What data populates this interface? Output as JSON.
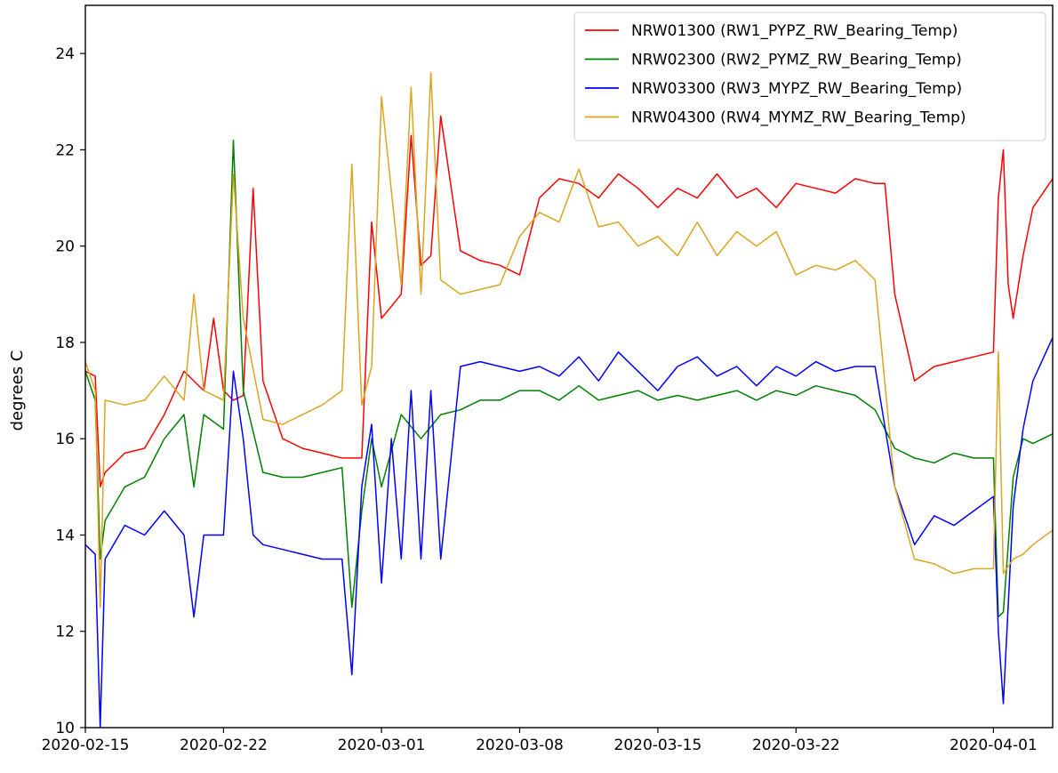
{
  "chart_data": {
    "type": "line",
    "title": "",
    "xlabel": "",
    "ylabel": "degrees C",
    "xlim": [
      "2020-02-15",
      "2020-04-04"
    ],
    "ylim": [
      10,
      25
    ],
    "grid": false,
    "legend_position": "top-right",
    "x_ticks": [
      "2020-02-15",
      "2020-02-22",
      "2020-03-01",
      "2020-03-08",
      "2020-03-15",
      "2020-03-22",
      "2020-04-01"
    ],
    "y_ticks": [
      10,
      12,
      14,
      16,
      18,
      20,
      22,
      24
    ],
    "series": [
      {
        "name": "NRW01300 (RW1_PYPZ_RW_Bearing_Temp)",
        "color": "#ff0000",
        "points": [
          [
            "2020-02-15",
            17.4
          ],
          [
            "2020-02-15T12:00",
            17.3
          ],
          [
            "2020-02-15T18:00",
            15.0
          ],
          [
            "2020-02-16",
            15.3
          ],
          [
            "2020-02-17",
            15.7
          ],
          [
            "2020-02-18",
            15.8
          ],
          [
            "2020-02-19",
            16.5
          ],
          [
            "2020-02-20",
            17.4
          ],
          [
            "2020-02-21",
            17.0
          ],
          [
            "2020-02-21T12:00",
            18.5
          ],
          [
            "2020-02-22",
            17.0
          ],
          [
            "2020-02-22T12:00",
            16.8
          ],
          [
            "2020-02-23",
            16.9
          ],
          [
            "2020-02-23T12:00",
            21.2
          ],
          [
            "2020-02-24",
            17.2
          ],
          [
            "2020-02-25",
            16.0
          ],
          [
            "2020-02-26",
            15.8
          ],
          [
            "2020-02-27",
            15.7
          ],
          [
            "2020-02-28",
            15.6
          ],
          [
            "2020-02-29",
            15.6
          ],
          [
            "2020-02-29T12:00",
            20.5
          ],
          [
            "2020-03-01",
            18.5
          ],
          [
            "2020-03-02",
            19.0
          ],
          [
            "2020-03-02T12:00",
            22.3
          ],
          [
            "2020-03-03",
            19.6
          ],
          [
            "2020-03-03T12:00",
            19.8
          ],
          [
            "2020-03-04",
            22.7
          ],
          [
            "2020-03-05",
            19.9
          ],
          [
            "2020-03-06",
            19.7
          ],
          [
            "2020-03-07",
            19.6
          ],
          [
            "2020-03-08",
            19.4
          ],
          [
            "2020-03-09",
            21.0
          ],
          [
            "2020-03-10",
            21.4
          ],
          [
            "2020-03-11",
            21.3
          ],
          [
            "2020-03-12",
            21.0
          ],
          [
            "2020-03-13",
            21.5
          ],
          [
            "2020-03-14",
            21.2
          ],
          [
            "2020-03-15",
            20.8
          ],
          [
            "2020-03-16",
            21.2
          ],
          [
            "2020-03-17",
            21.0
          ],
          [
            "2020-03-18",
            21.5
          ],
          [
            "2020-03-19",
            21.0
          ],
          [
            "2020-03-20",
            21.2
          ],
          [
            "2020-03-21",
            20.8
          ],
          [
            "2020-03-22",
            21.3
          ],
          [
            "2020-03-23",
            21.2
          ],
          [
            "2020-03-24",
            21.1
          ],
          [
            "2020-03-25",
            21.4
          ],
          [
            "2020-03-26",
            21.3
          ],
          [
            "2020-03-26T12:00",
            21.3
          ],
          [
            "2020-03-27",
            19.0
          ],
          [
            "2020-03-28",
            17.2
          ],
          [
            "2020-03-29",
            17.5
          ],
          [
            "2020-03-30",
            17.6
          ],
          [
            "2020-03-31",
            17.7
          ],
          [
            "2020-04-01",
            17.8
          ],
          [
            "2020-04-01T06:00",
            21.0
          ],
          [
            "2020-04-01T12:00",
            22.0
          ],
          [
            "2020-04-01T18:00",
            19.2
          ],
          [
            "2020-04-02",
            18.5
          ],
          [
            "2020-04-02T12:00",
            19.8
          ],
          [
            "2020-04-03",
            20.8
          ],
          [
            "2020-04-04",
            21.4
          ]
        ]
      },
      {
        "name": "NRW02300 (RW2_PYMZ_RW_Bearing_Temp)",
        "color": "#008000",
        "points": [
          [
            "2020-02-15",
            17.4
          ],
          [
            "2020-02-15T12:00",
            16.8
          ],
          [
            "2020-02-15T18:00",
            13.5
          ],
          [
            "2020-02-16",
            14.3
          ],
          [
            "2020-02-17",
            15.0
          ],
          [
            "2020-02-18",
            15.2
          ],
          [
            "2020-02-19",
            16.0
          ],
          [
            "2020-02-20",
            16.5
          ],
          [
            "2020-02-20T12:00",
            15.0
          ],
          [
            "2020-02-21",
            16.5
          ],
          [
            "2020-02-22",
            16.2
          ],
          [
            "2020-02-22T12:00",
            22.2
          ],
          [
            "2020-02-23",
            17.0
          ],
          [
            "2020-02-24",
            15.3
          ],
          [
            "2020-02-25",
            15.2
          ],
          [
            "2020-02-26",
            15.2
          ],
          [
            "2020-02-27",
            15.3
          ],
          [
            "2020-02-28",
            15.4
          ],
          [
            "2020-02-28T12:00",
            12.5
          ],
          [
            "2020-02-29",
            14.5
          ],
          [
            "2020-02-29T12:00",
            16.0
          ],
          [
            "2020-03-01",
            15.0
          ],
          [
            "2020-03-02",
            16.5
          ],
          [
            "2020-03-03",
            16.0
          ],
          [
            "2020-03-04",
            16.5
          ],
          [
            "2020-03-05",
            16.6
          ],
          [
            "2020-03-06",
            16.8
          ],
          [
            "2020-03-07",
            16.8
          ],
          [
            "2020-03-08",
            17.0
          ],
          [
            "2020-03-09",
            17.0
          ],
          [
            "2020-03-10",
            16.8
          ],
          [
            "2020-03-11",
            17.1
          ],
          [
            "2020-03-12",
            16.8
          ],
          [
            "2020-03-13",
            16.9
          ],
          [
            "2020-03-14",
            17.0
          ],
          [
            "2020-03-15",
            16.8
          ],
          [
            "2020-03-16",
            16.9
          ],
          [
            "2020-03-17",
            16.8
          ],
          [
            "2020-03-18",
            16.9
          ],
          [
            "2020-03-19",
            17.0
          ],
          [
            "2020-03-20",
            16.8
          ],
          [
            "2020-03-21",
            17.0
          ],
          [
            "2020-03-22",
            16.9
          ],
          [
            "2020-03-23",
            17.1
          ],
          [
            "2020-03-24",
            17.0
          ],
          [
            "2020-03-25",
            16.9
          ],
          [
            "2020-03-26",
            16.6
          ],
          [
            "2020-03-27",
            15.8
          ],
          [
            "2020-03-28",
            15.6
          ],
          [
            "2020-03-29",
            15.5
          ],
          [
            "2020-03-30",
            15.7
          ],
          [
            "2020-03-31",
            15.6
          ],
          [
            "2020-04-01",
            15.6
          ],
          [
            "2020-04-01T06:00",
            12.3
          ],
          [
            "2020-04-01T12:00",
            12.4
          ],
          [
            "2020-04-02",
            15.2
          ],
          [
            "2020-04-02T12:00",
            16.0
          ],
          [
            "2020-04-03",
            15.9
          ],
          [
            "2020-04-04",
            16.1
          ]
        ]
      },
      {
        "name": "NRW03300 (RW3_MYPZ_RW_Bearing_Temp)",
        "color": "#0000ff",
        "points": [
          [
            "2020-02-15",
            13.8
          ],
          [
            "2020-02-15T12:00",
            13.6
          ],
          [
            "2020-02-15T18:00",
            10.0
          ],
          [
            "2020-02-16",
            13.5
          ],
          [
            "2020-02-17",
            14.2
          ],
          [
            "2020-02-18",
            14.0
          ],
          [
            "2020-02-19",
            14.5
          ],
          [
            "2020-02-20",
            14.0
          ],
          [
            "2020-02-20T12:00",
            12.3
          ],
          [
            "2020-02-21",
            14.0
          ],
          [
            "2020-02-22",
            14.0
          ],
          [
            "2020-02-22T12:00",
            17.4
          ],
          [
            "2020-02-23",
            16.0
          ],
          [
            "2020-02-23T12:00",
            14.0
          ],
          [
            "2020-02-24",
            13.8
          ],
          [
            "2020-02-25",
            13.7
          ],
          [
            "2020-02-26",
            13.6
          ],
          [
            "2020-02-27",
            13.5
          ],
          [
            "2020-02-28",
            13.5
          ],
          [
            "2020-02-28T12:00",
            11.1
          ],
          [
            "2020-02-29",
            15.0
          ],
          [
            "2020-02-29T12:00",
            16.3
          ],
          [
            "2020-03-01",
            13.0
          ],
          [
            "2020-03-01T12:00",
            16.0
          ],
          [
            "2020-03-02",
            13.5
          ],
          [
            "2020-03-02T12:00",
            17.0
          ],
          [
            "2020-03-03",
            13.5
          ],
          [
            "2020-03-03T12:00",
            17.0
          ],
          [
            "2020-03-04",
            13.5
          ],
          [
            "2020-03-05",
            17.5
          ],
          [
            "2020-03-06",
            17.6
          ],
          [
            "2020-03-07",
            17.5
          ],
          [
            "2020-03-08",
            17.4
          ],
          [
            "2020-03-09",
            17.5
          ],
          [
            "2020-03-10",
            17.3
          ],
          [
            "2020-03-11",
            17.7
          ],
          [
            "2020-03-12",
            17.2
          ],
          [
            "2020-03-13",
            17.8
          ],
          [
            "2020-03-14",
            17.4
          ],
          [
            "2020-03-15",
            17.0
          ],
          [
            "2020-03-16",
            17.5
          ],
          [
            "2020-03-17",
            17.7
          ],
          [
            "2020-03-18",
            17.3
          ],
          [
            "2020-03-19",
            17.5
          ],
          [
            "2020-03-20",
            17.1
          ],
          [
            "2020-03-21",
            17.5
          ],
          [
            "2020-03-22",
            17.3
          ],
          [
            "2020-03-23",
            17.6
          ],
          [
            "2020-03-24",
            17.4
          ],
          [
            "2020-03-25",
            17.5
          ],
          [
            "2020-03-26",
            17.5
          ],
          [
            "2020-03-27",
            15.0
          ],
          [
            "2020-03-28",
            13.8
          ],
          [
            "2020-03-29",
            14.4
          ],
          [
            "2020-03-30",
            14.2
          ],
          [
            "2020-03-31",
            14.5
          ],
          [
            "2020-04-01",
            14.8
          ],
          [
            "2020-04-01T06:00",
            12.0
          ],
          [
            "2020-04-01T12:00",
            10.5
          ],
          [
            "2020-04-02",
            14.6
          ],
          [
            "2020-04-02T12:00",
            16.2
          ],
          [
            "2020-04-03",
            17.2
          ],
          [
            "2020-04-04",
            18.1
          ]
        ]
      },
      {
        "name": "NRW04300 (RW4_MYMZ_RW_Bearing_Temp)",
        "color": "#daa520",
        "points": [
          [
            "2020-02-15",
            17.6
          ],
          [
            "2020-02-15T12:00",
            17.0
          ],
          [
            "2020-02-15T18:00",
            12.5
          ],
          [
            "2020-02-16",
            16.8
          ],
          [
            "2020-02-17",
            16.7
          ],
          [
            "2020-02-18",
            16.8
          ],
          [
            "2020-02-19",
            17.3
          ],
          [
            "2020-02-20",
            16.8
          ],
          [
            "2020-02-20T12:00",
            19.0
          ],
          [
            "2020-02-21",
            17.0
          ],
          [
            "2020-02-22",
            16.8
          ],
          [
            "2020-02-22T12:00",
            21.5
          ],
          [
            "2020-02-23",
            18.5
          ],
          [
            "2020-02-24",
            16.4
          ],
          [
            "2020-02-25",
            16.3
          ],
          [
            "2020-02-26",
            16.5
          ],
          [
            "2020-02-27",
            16.7
          ],
          [
            "2020-02-28",
            17.0
          ],
          [
            "2020-02-28T12:00",
            21.7
          ],
          [
            "2020-02-29",
            16.7
          ],
          [
            "2020-02-29T12:00",
            17.5
          ],
          [
            "2020-03-01",
            23.1
          ],
          [
            "2020-03-02",
            19.2
          ],
          [
            "2020-03-02T12:00",
            23.3
          ],
          [
            "2020-03-03",
            19.0
          ],
          [
            "2020-03-03T12:00",
            23.6
          ],
          [
            "2020-03-04",
            19.3
          ],
          [
            "2020-03-05",
            19.0
          ],
          [
            "2020-03-06",
            19.1
          ],
          [
            "2020-03-07",
            19.2
          ],
          [
            "2020-03-08",
            20.2
          ],
          [
            "2020-03-09",
            20.7
          ],
          [
            "2020-03-10",
            20.5
          ],
          [
            "2020-03-11",
            21.6
          ],
          [
            "2020-03-12",
            20.4
          ],
          [
            "2020-03-13",
            20.5
          ],
          [
            "2020-03-14",
            20.0
          ],
          [
            "2020-03-15",
            20.2
          ],
          [
            "2020-03-16",
            19.8
          ],
          [
            "2020-03-17",
            20.5
          ],
          [
            "2020-03-18",
            19.8
          ],
          [
            "2020-03-19",
            20.3
          ],
          [
            "2020-03-20",
            20.0
          ],
          [
            "2020-03-21",
            20.3
          ],
          [
            "2020-03-22",
            19.4
          ],
          [
            "2020-03-23",
            19.6
          ],
          [
            "2020-03-24",
            19.5
          ],
          [
            "2020-03-25",
            19.7
          ],
          [
            "2020-03-26",
            19.3
          ],
          [
            "2020-03-27",
            15.0
          ],
          [
            "2020-03-28",
            13.5
          ],
          [
            "2020-03-29",
            13.4
          ],
          [
            "2020-03-30",
            13.2
          ],
          [
            "2020-03-31",
            13.3
          ],
          [
            "2020-04-01",
            13.3
          ],
          [
            "2020-04-01T06:00",
            17.8
          ],
          [
            "2020-04-01T12:00",
            13.2
          ],
          [
            "2020-04-02",
            13.5
          ],
          [
            "2020-04-02T12:00",
            13.6
          ],
          [
            "2020-04-03",
            13.8
          ],
          [
            "2020-04-04",
            14.1
          ]
        ]
      }
    ]
  }
}
